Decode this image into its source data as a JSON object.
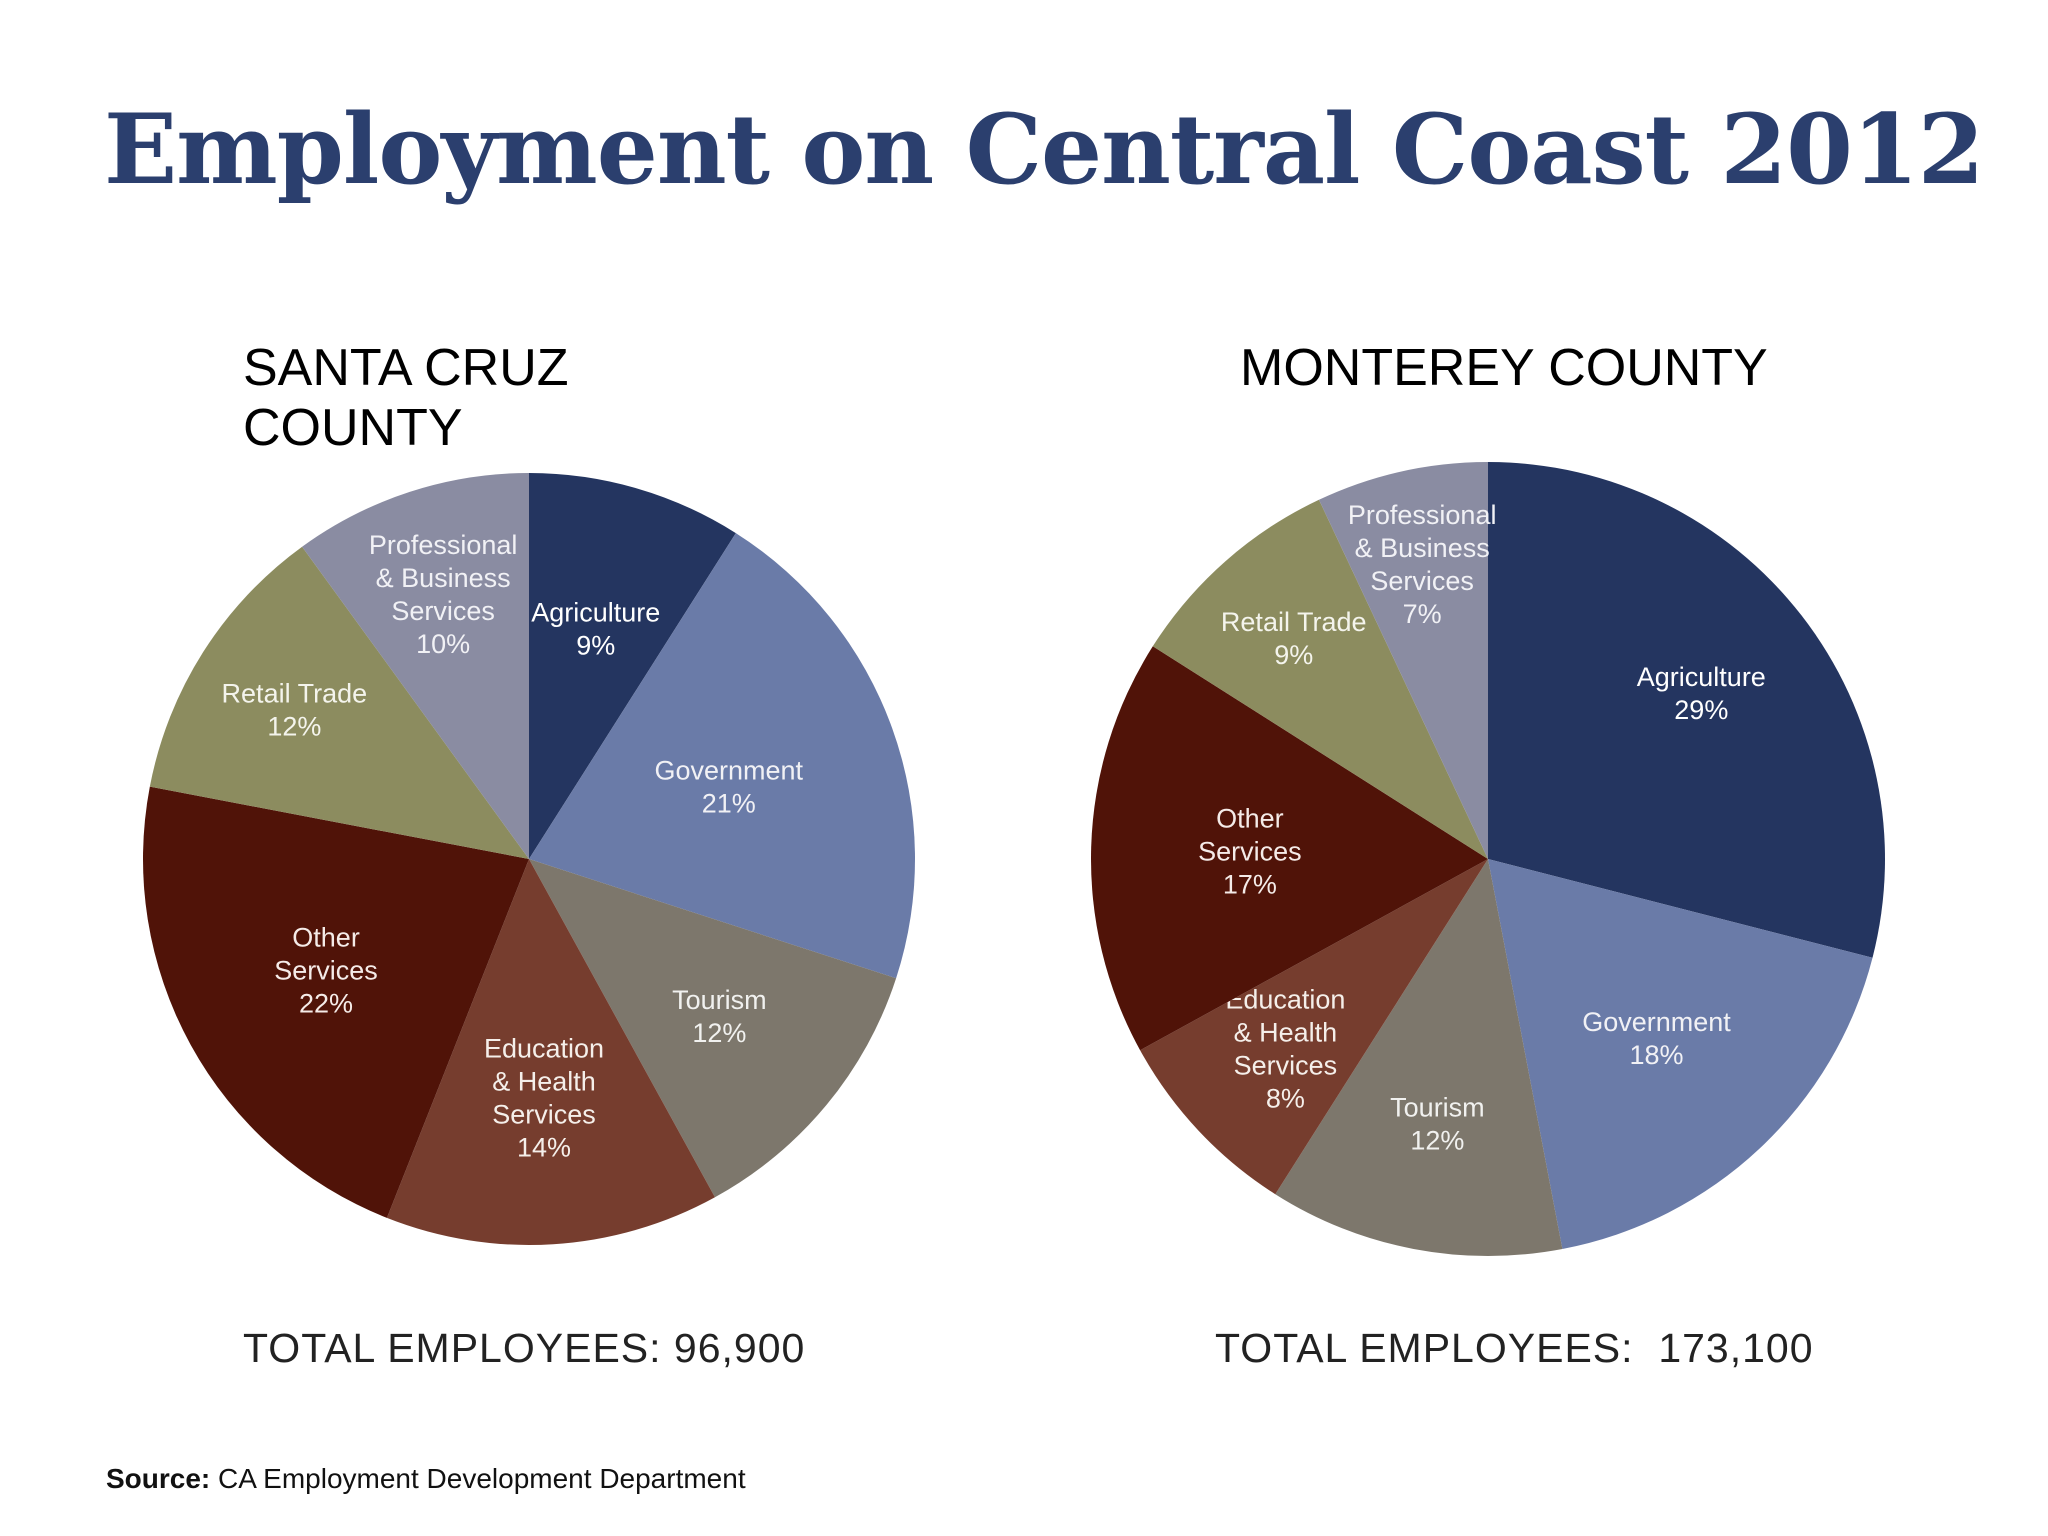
{
  "title": "Employment on Central Coast 2012",
  "colors": {
    "title": "#2b3f6e",
    "Agriculture": "#243560",
    "Government": "#6a7ba8",
    "Tourism": "#7d776c",
    "Education & Health Services": "#763d2e",
    "Other Services": "#501308",
    "Retail Trade": "#8c8c5f",
    "Professional & Business Services": "#8a8ca2"
  },
  "chart_data": [
    {
      "type": "pie",
      "title": "SANTA CRUZ COUNTY",
      "title_lines": [
        "SANTA CRUZ",
        "COUNTY"
      ],
      "total_label": "TOTAL EMPLOYEES: 96,900",
      "slices": [
        {
          "name": "Agriculture",
          "label_lines": [
            "Agriculture"
          ],
          "value": 9,
          "pct_label": "9%"
        },
        {
          "name": "Government",
          "label_lines": [
            "Government"
          ],
          "value": 21,
          "pct_label": "21%"
        },
        {
          "name": "Tourism",
          "label_lines": [
            "Tourism"
          ],
          "value": 12,
          "pct_label": "12%"
        },
        {
          "name": "Education & Health Services",
          "label_lines": [
            "Education",
            "& Health",
            "Services"
          ],
          "value": 14,
          "pct_label": "14%"
        },
        {
          "name": "Other Services",
          "label_lines": [
            "Other",
            "Services"
          ],
          "value": 22,
          "pct_label": "22%"
        },
        {
          "name": "Retail Trade",
          "label_lines": [
            "Retail Trade"
          ],
          "value": 12,
          "pct_label": "12%"
        },
        {
          "name": "Professional & Business Services",
          "label_lines": [
            "Professional",
            "& Business",
            "Services"
          ],
          "value": 10,
          "pct_label": "10%"
        }
      ]
    },
    {
      "type": "pie",
      "title": "MONTEREY COUNTY",
      "title_lines": [
        "MONTEREY COUNTY"
      ],
      "total_label": "TOTAL EMPLOYEES:  173,100",
      "slices": [
        {
          "name": "Agriculture",
          "label_lines": [
            "Agriculture"
          ],
          "value": 29,
          "pct_label": "29%"
        },
        {
          "name": "Government",
          "label_lines": [
            "Government"
          ],
          "value": 18,
          "pct_label": "18%"
        },
        {
          "name": "Tourism",
          "label_lines": [
            "Tourism"
          ],
          "value": 12,
          "pct_label": "12%"
        },
        {
          "name": "Education & Health Services",
          "label_lines": [
            "Education",
            "& Health",
            "Services"
          ],
          "value": 8,
          "pct_label": "8%"
        },
        {
          "name": "Other Services",
          "label_lines": [
            "Other",
            "Services"
          ],
          "value": 17,
          "pct_label": "17%"
        },
        {
          "name": "Retail Trade",
          "label_lines": [
            "Retail Trade"
          ],
          "value": 9,
          "pct_label": "9%"
        },
        {
          "name": "Professional & Business Services",
          "label_lines": [
            "Professional",
            "& Business",
            "Services"
          ],
          "value": 7,
          "pct_label": "7%"
        }
      ]
    }
  ],
  "source": {
    "label": "Source:",
    "text": "CA Employment Development Department"
  }
}
